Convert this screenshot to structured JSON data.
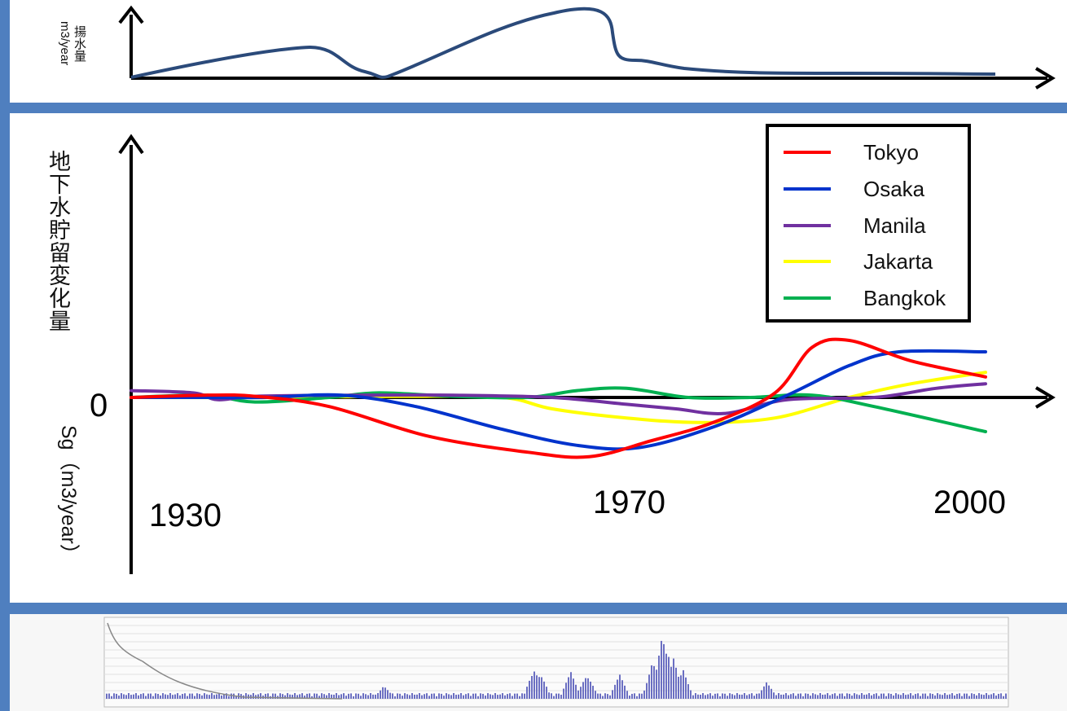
{
  "top_chart": {
    "ylabel_line1": "揚水量",
    "ylabel_line2": "m3/year",
    "line_color": "#2b4a7a"
  },
  "chart_data": {
    "type": "line",
    "ylabel": "地下水貯留変化量",
    "ylabel_sub": "Sg（m3/year）",
    "x_ticks": [
      "1930",
      "1970",
      "2000"
    ],
    "zero_label": "0",
    "grid": false,
    "legend_position": "top-right",
    "series": [
      {
        "name": "Tokyo",
        "color": "#ff0000",
        "x": [
          1930,
          1936,
          1940,
          1946,
          1954,
          1962,
          1967,
          1972,
          1977,
          1982,
          1985,
          1988,
          1993,
          1999
        ],
        "y": [
          0,
          0.1,
          0.05,
          -0.4,
          -1.7,
          -2.4,
          -2.6,
          -1.9,
          -1.1,
          0.2,
          2.2,
          2.5,
          1.6,
          0.9
        ]
      },
      {
        "name": "Osaka",
        "color": "#0033cc",
        "x": [
          1930,
          1936,
          1941,
          1947,
          1953,
          1960,
          1966,
          1971,
          1977,
          1983,
          1988,
          1992,
          1999
        ],
        "y": [
          0,
          0,
          0,
          0.1,
          -0.4,
          -1.4,
          -2.1,
          -2.2,
          -1.3,
          0.1,
          1.4,
          2.0,
          2.0
        ]
      },
      {
        "name": "Manila",
        "color": "#7030a0",
        "x": [
          1930,
          1935,
          1937,
          1940,
          1948,
          1956,
          1964,
          1970,
          1974,
          1978,
          1983,
          1990,
          1995,
          1999
        ],
        "y": [
          0.3,
          0.2,
          -0.1,
          0.05,
          0.1,
          0.1,
          0,
          -0.3,
          -0.5,
          -0.7,
          -0.1,
          0,
          0.4,
          0.6
        ]
      },
      {
        "name": "Jakarta",
        "color": "#ffff00",
        "x": [
          1930,
          1940,
          1952,
          1960,
          1964,
          1970,
          1976,
          1982,
          1988,
          1993,
          1999
        ],
        "y": [
          0,
          0,
          0.05,
          0,
          -0.5,
          -0.9,
          -1.1,
          -0.9,
          0,
          0.6,
          1.1
        ]
      },
      {
        "name": "Bangkok",
        "color": "#00b050",
        "x": [
          1930,
          1936,
          1940,
          1946,
          1950,
          1956,
          1962,
          1966,
          1970,
          1975,
          1980,
          1985,
          1990,
          1999
        ],
        "y": [
          0,
          0.1,
          -0.2,
          0,
          0.2,
          0.05,
          0,
          0.3,
          0.4,
          0,
          0,
          0.1,
          -0.4,
          -1.5
        ]
      }
    ]
  }
}
